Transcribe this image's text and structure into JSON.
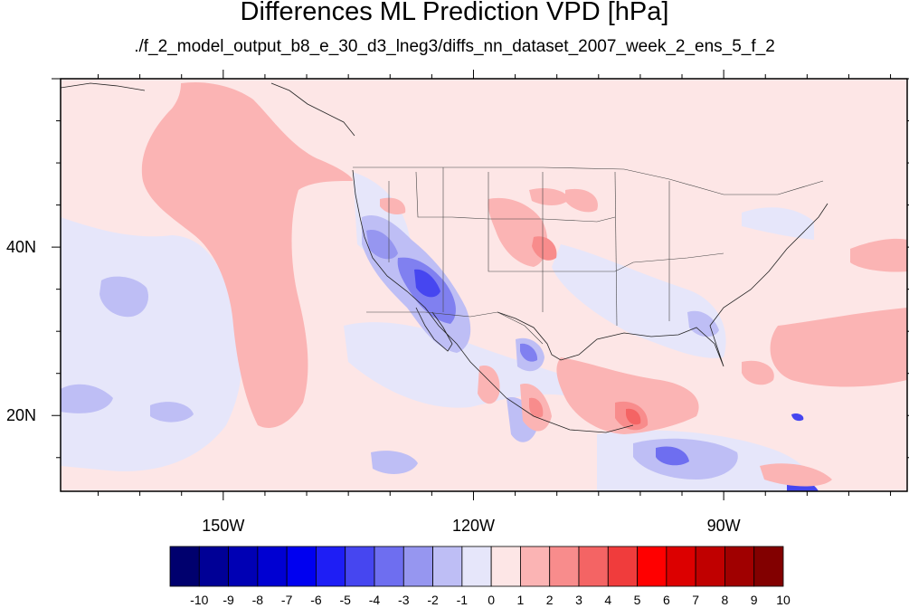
{
  "title": "Differences ML Prediction VPD [hPa]",
  "subtitle": "./f_2_model_output_b8_e_30_d3_lneg3/diffs_nn_dataset_2007_week_2_ens_5_f_2",
  "map": {
    "lon_range": [
      -169.5,
      -68.0
    ],
    "lat_range": [
      11.0,
      60.0
    ],
    "lon_ticks": [
      {
        "value": -150,
        "label": "150W"
      },
      {
        "value": -120,
        "label": "120W"
      },
      {
        "value": -90,
        "label": "90W"
      }
    ],
    "lat_ticks": [
      {
        "value": 40,
        "label": "40N"
      },
      {
        "value": 20,
        "label": "20N"
      }
    ],
    "background_color": "#fde6e6"
  },
  "colorbar": {
    "labels": [
      "-10",
      "-9",
      "-8",
      "-7",
      "-6",
      "-5",
      "-4",
      "-3",
      "-2",
      "-1",
      "0",
      "1",
      "2",
      "3",
      "4",
      "5",
      "6",
      "7",
      "8",
      "9",
      "10"
    ],
    "colors": [
      "#00006e",
      "#000096",
      "#0000b4",
      "#0000d2",
      "#0000f0",
      "#1e1ef5",
      "#4646f0",
      "#6e6ef0",
      "#9696f0",
      "#bebef5",
      "#e6e6fa",
      "#fde6e6",
      "#fbb4b4",
      "#f88c8c",
      "#f46464",
      "#f03c3c",
      "#ff0000",
      "#dc0000",
      "#c00000",
      "#a00000",
      "#820000"
    ]
  }
}
